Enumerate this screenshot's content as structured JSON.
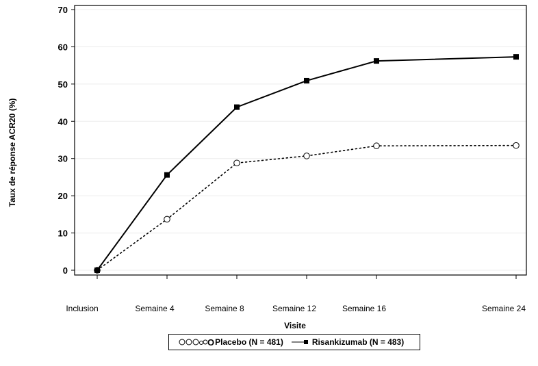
{
  "chart_data": {
    "type": "line",
    "title": "",
    "xlabel": "Visite",
    "ylabel": "Taux de réponse ACR20 (%)",
    "categories": [
      "Inclusion",
      "Semaine 4",
      "Semaine 8",
      "Semaine 12",
      "Semaine 16",
      "Semaine 24"
    ],
    "x_weeks": [
      0,
      4,
      8,
      12,
      16,
      24
    ],
    "ylim": [
      0,
      70
    ],
    "yticks": [
      0,
      10,
      20,
      30,
      40,
      50,
      60,
      70
    ],
    "grid": "horizontal",
    "legend_position": "bottom",
    "series": [
      {
        "name": "Placebo (N = 481)",
        "values": [
          0,
          13.7,
          28.8,
          30.7,
          33.4,
          33.5
        ],
        "line_style": "dotted",
        "marker": "open-circle",
        "color": "#000000"
      },
      {
        "name": "Risankizumab (N = 483)",
        "values": [
          0,
          25.6,
          43.8,
          50.9,
          56.2,
          57.3
        ],
        "line_style": "solid",
        "marker": "filled-square",
        "color": "#000000"
      }
    ]
  },
  "legend": {
    "placebo_label": "Placebo (N = 481)",
    "risankizumab_label": "Risankizumab (N = 483)"
  }
}
